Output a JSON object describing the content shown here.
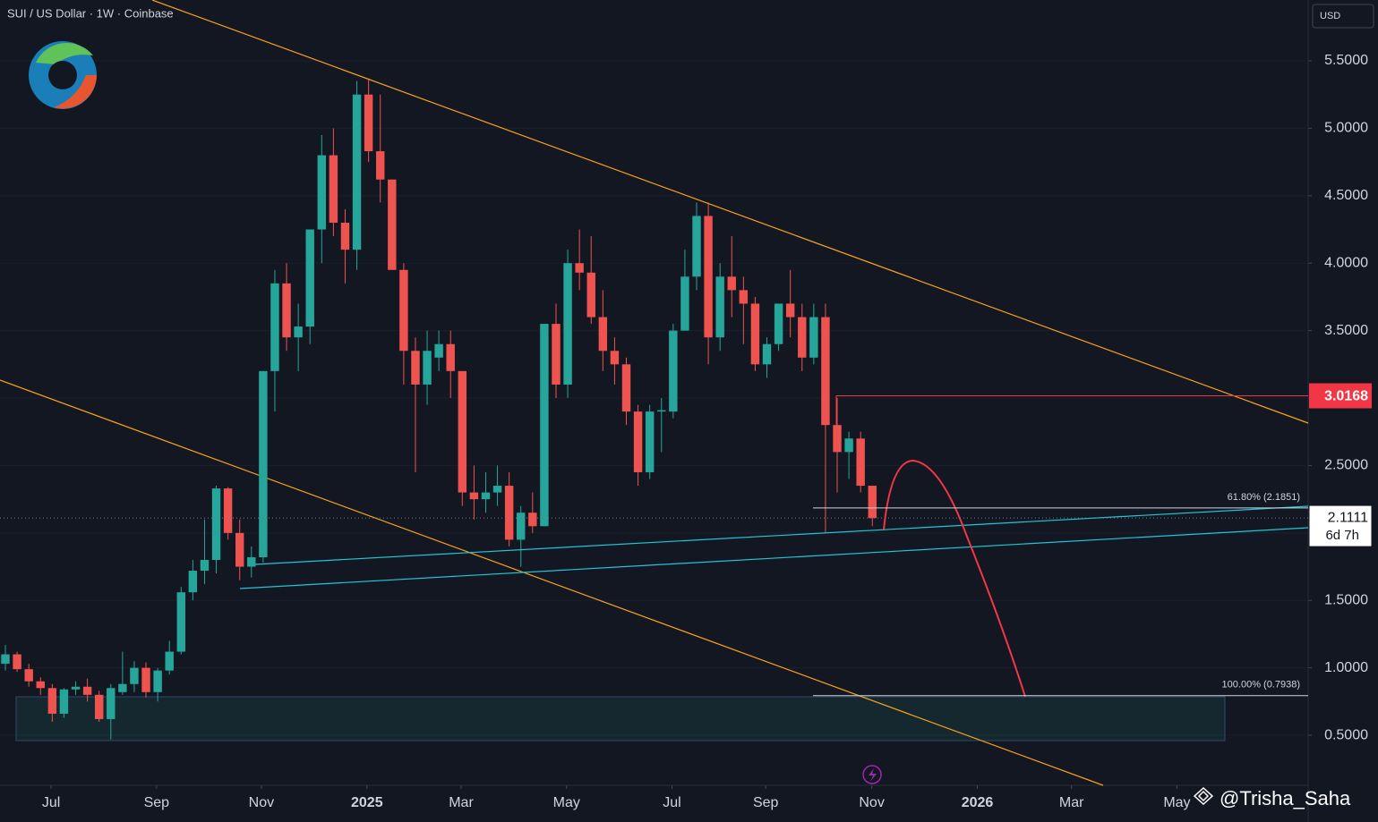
{
  "chart_data": {
    "type": "candlestick",
    "title": "SUI / US Dollar · 1W · Coinbase",
    "currency": "USD",
    "watermark": "@Trisha_Saha",
    "up_color": "#26a69a",
    "down_color": "#ef5350",
    "ohlc": [
      [
        1.03,
        1.17,
        0.98,
        1.1
      ],
      [
        1.1,
        1.12,
        0.97,
        0.99
      ],
      [
        0.99,
        1.03,
        0.86,
        0.9
      ],
      [
        0.9,
        0.93,
        0.8,
        0.85
      ],
      [
        0.85,
        0.88,
        0.6,
        0.66
      ],
      [
        0.66,
        0.85,
        0.63,
        0.84
      ],
      [
        0.84,
        0.9,
        0.8,
        0.86
      ],
      [
        0.86,
        0.92,
        0.75,
        0.8
      ],
      [
        0.8,
        0.83,
        0.6,
        0.62
      ],
      [
        0.62,
        0.88,
        0.47,
        0.85
      ],
      [
        0.82,
        1.12,
        0.8,
        0.88
      ],
      [
        0.88,
        1.05,
        0.82,
        1.0
      ],
      [
        1.0,
        1.04,
        0.78,
        0.82
      ],
      [
        0.82,
        1.0,
        0.75,
        0.98
      ],
      [
        0.98,
        1.2,
        0.95,
        1.12
      ],
      [
        1.12,
        1.6,
        1.1,
        1.56
      ],
      [
        1.56,
        1.8,
        1.5,
        1.72
      ],
      [
        1.72,
        2.1,
        1.62,
        1.8
      ],
      [
        1.8,
        2.35,
        1.7,
        2.33
      ],
      [
        2.33,
        2.34,
        1.95,
        2.0
      ],
      [
        2.0,
        2.1,
        1.65,
        1.75
      ],
      [
        1.75,
        1.9,
        1.67,
        1.82
      ],
      [
        1.82,
        3.2,
        1.78,
        3.2
      ],
      [
        3.2,
        3.95,
        2.9,
        3.85
      ],
      [
        3.85,
        4.0,
        3.35,
        3.45
      ],
      [
        3.45,
        3.7,
        3.2,
        3.53
      ],
      [
        3.53,
        4.25,
        3.4,
        4.25
      ],
      [
        4.25,
        4.95,
        4.0,
        4.8
      ],
      [
        4.8,
        5.0,
        4.2,
        4.3
      ],
      [
        4.3,
        4.4,
        3.85,
        4.1
      ],
      [
        4.1,
        5.35,
        3.95,
        5.25
      ],
      [
        5.25,
        5.37,
        4.75,
        4.83
      ],
      [
        4.83,
        5.25,
        4.45,
        4.62
      ],
      [
        4.62,
        4.62,
        3.95,
        3.95
      ],
      [
        3.95,
        4.0,
        3.1,
        3.35
      ],
      [
        3.35,
        3.45,
        2.45,
        3.1
      ],
      [
        3.1,
        3.5,
        2.95,
        3.35
      ],
      [
        3.3,
        3.5,
        3.2,
        3.4
      ],
      [
        3.4,
        3.5,
        3.0,
        3.2
      ],
      [
        3.2,
        3.2,
        2.2,
        2.3
      ],
      [
        2.3,
        2.5,
        2.1,
        2.25
      ],
      [
        2.25,
        2.45,
        2.15,
        2.3
      ],
      [
        2.3,
        2.5,
        2.2,
        2.35
      ],
      [
        2.35,
        2.45,
        1.9,
        1.95
      ],
      [
        1.95,
        2.2,
        1.75,
        2.15
      ],
      [
        2.15,
        2.3,
        2.0,
        2.05
      ],
      [
        2.05,
        3.55,
        2.05,
        3.55
      ],
      [
        3.55,
        3.7,
        3.0,
        3.1
      ],
      [
        3.1,
        4.1,
        3.0,
        4.0
      ],
      [
        4.0,
        4.25,
        3.8,
        3.93
      ],
      [
        3.93,
        4.2,
        3.55,
        3.6
      ],
      [
        3.6,
        3.8,
        3.2,
        3.35
      ],
      [
        3.35,
        3.45,
        3.1,
        3.25
      ],
      [
        3.25,
        3.3,
        2.8,
        2.9
      ],
      [
        2.9,
        2.95,
        2.35,
        2.45
      ],
      [
        2.45,
        2.95,
        2.4,
        2.9
      ],
      [
        2.9,
        3.0,
        2.6,
        2.91
      ],
      [
        2.9,
        3.55,
        2.85,
        3.5
      ],
      [
        3.5,
        4.1,
        3.5,
        3.9
      ],
      [
        3.9,
        4.45,
        3.8,
        4.35
      ],
      [
        4.35,
        4.45,
        3.25,
        3.45
      ],
      [
        3.45,
        4.0,
        3.35,
        3.9
      ],
      [
        3.9,
        4.2,
        3.6,
        3.8
      ],
      [
        3.8,
        3.9,
        3.4,
        3.7
      ],
      [
        3.7,
        3.75,
        3.2,
        3.25
      ],
      [
        3.25,
        3.45,
        3.15,
        3.4
      ],
      [
        3.4,
        3.7,
        3.35,
        3.7
      ],
      [
        3.7,
        3.95,
        3.45,
        3.6
      ],
      [
        3.6,
        3.7,
        3.2,
        3.3
      ],
      [
        3.3,
        3.7,
        3.25,
        3.6
      ],
      [
        3.6,
        3.7,
        2.0,
        2.8
      ],
      [
        2.8,
        3.0,
        2.3,
        2.6
      ],
      [
        2.6,
        2.75,
        2.4,
        2.7
      ],
      [
        2.7,
        2.75,
        2.3,
        2.35
      ],
      [
        2.35,
        2.35,
        2.05,
        2.11
      ]
    ],
    "xlim": [
      -0.46,
      111.2
    ],
    "xticks": [
      {
        "value": 3.9,
        "label": "Jul"
      },
      {
        "value": 12.9,
        "label": "Sep"
      },
      {
        "value": 21.85,
        "label": "Nov"
      },
      {
        "value": 30.86,
        "label": "2025"
      },
      {
        "value": 38.9,
        "label": "Mar"
      },
      {
        "value": 47.9,
        "label": "May"
      },
      {
        "value": 56.9,
        "label": "Jul"
      },
      {
        "value": 64.9,
        "label": "Sep"
      },
      {
        "value": 73.95,
        "label": "Nov"
      },
      {
        "value": 82.96,
        "label": "2026"
      },
      {
        "value": 91.0,
        "label": "Mar"
      },
      {
        "value": 100.0,
        "label": "May"
      }
    ],
    "ylim": [
      0.129,
      5.951
    ],
    "yticks": [
      {
        "value": 0.5,
        "label": "0.5000"
      },
      {
        "value": 1.0,
        "label": "1.0000"
      },
      {
        "value": 1.5,
        "label": "1.5000"
      },
      {
        "value": 2.0,
        "label": "2.0000"
      },
      {
        "value": 2.5,
        "label": "2.5000"
      },
      {
        "value": 3.0,
        "label": "3.0000"
      },
      {
        "value": 3.5,
        "label": "3.5000"
      },
      {
        "value": 4.0,
        "label": "4.0000"
      },
      {
        "value": 4.5,
        "label": "4.5000"
      },
      {
        "value": 5.0,
        "label": "5.0000"
      },
      {
        "value": 5.5,
        "label": "5.5000"
      }
    ],
    "fib_levels": [
      {
        "value": 2.1851,
        "label": "61.80% (2.1851)"
      },
      {
        "value": 0.7938,
        "label": "100.00% (0.7938)"
      }
    ],
    "price_line": {
      "value": 3.0168,
      "color": "#f23645"
    },
    "last_price": {
      "value": 2.1111,
      "countdown": "6d 7h"
    }
  }
}
